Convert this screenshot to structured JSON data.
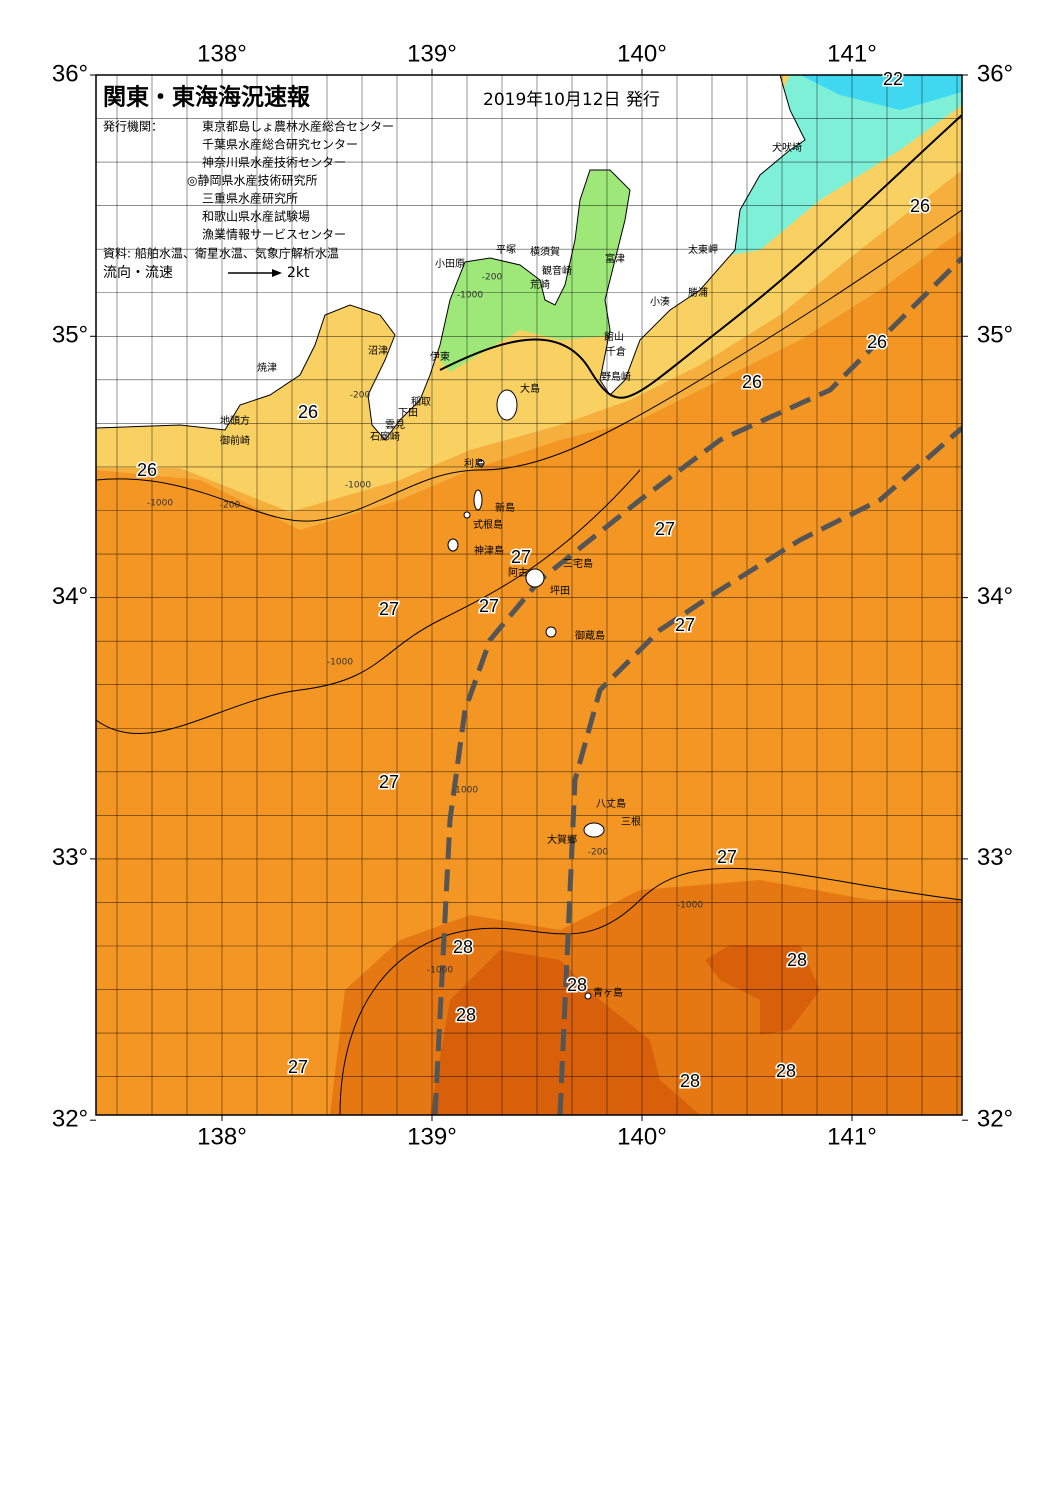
{
  "map": {
    "title": "関東・東海海況速報",
    "date": "2019年10月12日 発行",
    "issuer_label": "発行機関：",
    "issuers": [
      "東京都島しょ農林水産総合センター",
      "千葉県水産総合研究センター",
      "神奈川県水産技術センター",
      "◎静岡県水産技術研究所",
      "三重県水産研究所",
      "和歌山県水産試験場",
      "漁業情報サービスセンター"
    ],
    "sources": "資料: 船舶水温、衛星水温、気象庁解析水温",
    "legend_label": "流向・流速",
    "legend_speed": "2kt",
    "lon_ticks": [
      {
        "value": 138,
        "label": "138°"
      },
      {
        "value": 139,
        "label": "139°"
      },
      {
        "value": 140,
        "label": "140°"
      },
      {
        "value": 141,
        "label": "141°"
      }
    ],
    "lat_ticks": [
      {
        "value": 36,
        "label": "36°"
      },
      {
        "value": 35,
        "label": "35°"
      },
      {
        "value": 34,
        "label": "34°"
      },
      {
        "value": 33,
        "label": "33°"
      },
      {
        "value": 32,
        "label": "32°"
      }
    ],
    "places": [
      "犬吠埼",
      "太東岬",
      "勝浦",
      "小湊",
      "館山",
      "千倉",
      "野島崎",
      "富津",
      "観音崎",
      "横須賀",
      "荒崎",
      "平塚",
      "小田原",
      "伊東",
      "稲取",
      "下田",
      "雲見",
      "石廊崎",
      "沼津",
      "焼津",
      "地頭方",
      "御前崎",
      "大島",
      "利島",
      "新島",
      "式根島",
      "神津島",
      "三宅島",
      "阿古",
      "坪田",
      "御蔵島",
      "八丈島",
      "三根",
      "大賀郷",
      "青ヶ島"
    ],
    "temperature_labels": [
      "22",
      "26",
      "26",
      "26",
      "26",
      "26",
      "27",
      "27",
      "27",
      "27",
      "27",
      "27",
      "27",
      "27",
      "28",
      "28",
      "28",
      "28",
      "28",
      "28"
    ],
    "depth_labels": [
      "-200",
      "-1000",
      "-200",
      "-1000",
      "-200",
      "-1000",
      "-1000",
      "-200",
      "-1000",
      "-1000",
      "-1000"
    ]
  }
}
